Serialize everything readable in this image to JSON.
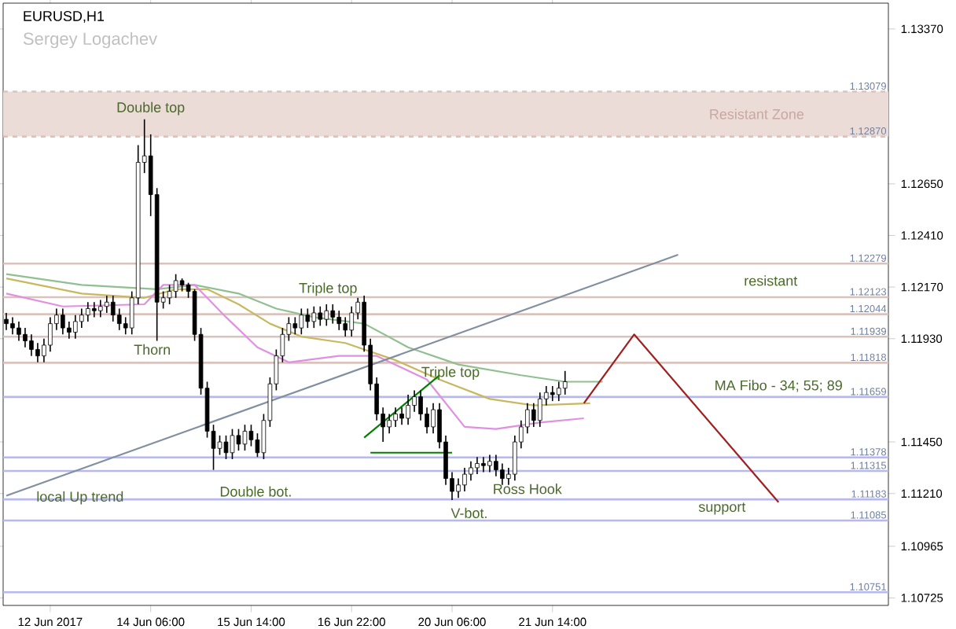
{
  "chart_data": {
    "type": "candlestick",
    "title": "EURUSD,H1",
    "subtitle": "Sergey Logachev",
    "categories": [
      null,
      null,
      null,
      null,
      null,
      null,
      null,
      "12 Jun 2017",
      null,
      null,
      null,
      null,
      null,
      null,
      null,
      null,
      null,
      null,
      null,
      null,
      null,
      null,
      null,
      "14 Jun 06:00",
      null,
      null,
      null,
      null,
      null,
      null,
      null,
      null,
      null,
      null,
      null,
      null,
      null,
      null,
      null,
      "15 Jun 14:00",
      null,
      null,
      null,
      null,
      null,
      null,
      null,
      null,
      null,
      null,
      null,
      null,
      null,
      null,
      null,
      "16 Jun 22:00",
      null,
      null,
      null,
      null,
      null,
      null,
      null,
      null,
      null,
      null,
      null,
      null,
      null,
      null,
      null,
      "20 Jun 06:00",
      null,
      null,
      null,
      null,
      null,
      null,
      null,
      null,
      null,
      null,
      null,
      null,
      null,
      null,
      null,
      "21 Jun 14:00",
      null,
      null,
      null,
      null,
      null,
      null,
      null,
      null,
      null,
      null,
      null,
      null,
      null,
      null,
      null,
      null,
      null,
      null,
      null,
      null,
      null,
      null,
      null,
      null,
      null,
      null,
      null,
      null,
      null,
      null,
      null,
      null,
      null,
      null,
      null,
      null,
      null,
      null,
      null,
      null,
      null,
      null,
      null,
      null,
      null,
      null,
      null,
      null,
      null,
      null,
      null,
      null,
      null
    ],
    "ohlc": [
      [
        1.1202,
        1.1205,
        1.1197,
        1.12
      ],
      [
        1.12,
        1.1203,
        1.1195,
        1.1198
      ],
      [
        1.1198,
        1.1201,
        1.1192,
        1.1195
      ],
      [
        1.1195,
        1.1198,
        1.1189,
        1.1192
      ],
      [
        1.1192,
        1.1195,
        1.1185,
        1.1188
      ],
      [
        1.1188,
        1.1191,
        1.1182,
        1.1185
      ],
      [
        1.1185,
        1.1193,
        1.1182,
        1.119
      ],
      [
        1.119,
        1.1203,
        1.1187,
        1.12
      ],
      [
        1.12,
        1.1207,
        1.1197,
        1.1204
      ],
      [
        1.1204,
        1.1207,
        1.1195,
        1.1198
      ],
      [
        1.1198,
        1.1201,
        1.1193,
        1.1196
      ],
      [
        1.1196,
        1.1204,
        1.1193,
        1.1201
      ],
      [
        1.1201,
        1.1207,
        1.1198,
        1.1204
      ],
      [
        1.1204,
        1.121,
        1.1201,
        1.1207
      ],
      [
        1.1207,
        1.121,
        1.1203,
        1.1206
      ],
      [
        1.1206,
        1.1211,
        1.1203,
        1.1208
      ],
      [
        1.1208,
        1.1213,
        1.1205,
        1.121
      ],
      [
        1.121,
        1.1213,
        1.1201,
        1.1204
      ],
      [
        1.1204,
        1.1207,
        1.1197,
        1.12
      ],
      [
        1.12,
        1.1203,
        1.1195,
        1.1198
      ],
      [
        1.1198,
        1.1215,
        1.1195,
        1.1212
      ],
      [
        1.1212,
        1.1283,
        1.1209,
        1.1275
      ],
      [
        1.1275,
        1.1295,
        1.127,
        1.1278
      ],
      [
        1.1278,
        1.1288,
        1.125,
        1.126
      ],
      [
        1.126,
        1.1263,
        1.1192,
        1.121
      ],
      [
        1.121,
        1.1215,
        1.1207,
        1.1212
      ],
      [
        1.1212,
        1.1218,
        1.1209,
        1.1215
      ],
      [
        1.1215,
        1.1223,
        1.1212,
        1.122
      ],
      [
        1.122,
        1.1221,
        1.1215,
        1.1218
      ],
      [
        1.1218,
        1.1219,
        1.1212,
        1.1215
      ],
      [
        1.1215,
        1.1216,
        1.1192,
        1.1195
      ],
      [
        1.1195,
        1.1198,
        1.1167,
        1.117
      ],
      [
        1.117,
        1.1173,
        1.1147,
        1.115
      ],
      [
        1.115,
        1.1153,
        1.1132,
        1.1142
      ],
      [
        1.1142,
        1.1148,
        1.1139,
        1.1145
      ],
      [
        1.1145,
        1.1148,
        1.1137,
        1.114
      ],
      [
        1.114,
        1.1151,
        1.1137,
        1.1148
      ],
      [
        1.1148,
        1.1151,
        1.1141,
        1.1144
      ],
      [
        1.1144,
        1.1153,
        1.1141,
        1.115
      ],
      [
        1.115,
        1.1153,
        1.1143,
        1.1146
      ],
      [
        1.1146,
        1.1149,
        1.1138,
        1.114
      ],
      [
        1.114,
        1.1158,
        1.1137,
        1.1155
      ],
      [
        1.1155,
        1.1175,
        1.1152,
        1.1172
      ],
      [
        1.1172,
        1.1188,
        1.1169,
        1.1185
      ],
      [
        1.1185,
        1.1198,
        1.1182,
        1.1195
      ],
      [
        1.1195,
        1.1203,
        1.1192,
        1.12
      ],
      [
        1.12,
        1.1203,
        1.1195,
        1.1198
      ],
      [
        1.1198,
        1.1207,
        1.1195,
        1.1204
      ],
      [
        1.1204,
        1.1207,
        1.1198,
        1.1201
      ],
      [
        1.1201,
        1.1208,
        1.1198,
        1.1205
      ],
      [
        1.1205,
        1.1208,
        1.1199,
        1.1202
      ],
      [
        1.1202,
        1.1209,
        1.1199,
        1.1206
      ],
      [
        1.1206,
        1.1209,
        1.12,
        1.1203
      ],
      [
        1.1203,
        1.1206,
        1.1197,
        1.12
      ],
      [
        1.12,
        1.1203,
        1.1194,
        1.1197
      ],
      [
        1.1197,
        1.1208,
        1.1194,
        1.1205
      ],
      [
        1.1205,
        1.1212,
        1.1202,
        1.121
      ],
      [
        1.121,
        1.1213,
        1.1187,
        1.119
      ],
      [
        1.119,
        1.1193,
        1.1169,
        1.1172
      ],
      [
        1.1172,
        1.1175,
        1.1155,
        1.1158
      ],
      [
        1.1158,
        1.1161,
        1.1145,
        1.1152
      ],
      [
        1.1152,
        1.1158,
        1.1149,
        1.1155
      ],
      [
        1.1155,
        1.1161,
        1.1152,
        1.1158
      ],
      [
        1.1158,
        1.1161,
        1.1153,
        1.1156
      ],
      [
        1.1156,
        1.1167,
        1.1153,
        1.1162
      ],
      [
        1.1162,
        1.1169,
        1.1159,
        1.1166
      ],
      [
        1.1166,
        1.1169,
        1.1155,
        1.1158
      ],
      [
        1.1158,
        1.1161,
        1.1149,
        1.1152
      ],
      [
        1.1152,
        1.1163,
        1.1149,
        1.116
      ],
      [
        1.116,
        1.1163,
        1.1142,
        1.1145
      ],
      [
        1.1145,
        1.1148,
        1.1125,
        1.1128
      ],
      [
        1.1128,
        1.1131,
        1.1118,
        1.1122
      ],
      [
        1.1122,
        1.1128,
        1.1119,
        1.1125
      ],
      [
        1.1125,
        1.1133,
        1.1122,
        1.113
      ],
      [
        1.113,
        1.1136,
        1.1127,
        1.1133
      ],
      [
        1.1133,
        1.1138,
        1.113,
        1.1135
      ],
      [
        1.1135,
        1.1138,
        1.1131,
        1.1134
      ],
      [
        1.1134,
        1.1139,
        1.1131,
        1.1136
      ],
      [
        1.1136,
        1.1139,
        1.1129,
        1.1132
      ],
      [
        1.1132,
        1.1135,
        1.1125,
        1.1128
      ],
      [
        1.1128,
        1.1133,
        1.1125,
        1.113
      ],
      [
        1.113,
        1.1148,
        1.1127,
        1.1145
      ],
      [
        1.1145,
        1.1155,
        1.1142,
        1.1152
      ],
      [
        1.1152,
        1.1163,
        1.1149,
        1.116
      ],
      [
        1.116,
        1.1163,
        1.1152,
        1.1155
      ],
      [
        1.1155,
        1.1168,
        1.1152,
        1.1165
      ],
      [
        1.1165,
        1.1171,
        1.1162,
        1.1168
      ],
      [
        1.1168,
        1.1171,
        1.1164,
        1.1167
      ],
      [
        1.1167,
        1.1173,
        1.1164,
        1.117
      ],
      [
        1.117,
        1.1178,
        1.1167,
        1.1173
      ],
      null,
      null,
      null,
      null,
      null,
      null,
      null,
      null,
      null,
      null,
      null,
      null,
      null,
      null,
      null,
      null,
      null,
      null,
      null,
      null,
      null,
      null,
      null,
      null,
      null,
      null,
      null,
      null,
      null,
      null,
      null,
      null,
      null,
      null,
      null,
      null,
      null,
      null,
      null,
      null,
      null,
      null,
      null,
      null,
      null,
      null,
      null,
      null,
      null,
      null,
      null
    ],
    "color": "#000000",
    "series": [
      {
        "type": "line",
        "color": "#90c090",
        "values": [
          1.1223,
          null,
          null,
          null,
          null,
          null,
          null,
          null,
          null,
          null,
          null,
          null,
          1.1218,
          null,
          null,
          null,
          null,
          null,
          null,
          null,
          null,
          null,
          null,
          null,
          1.1216,
          null,
          null,
          null,
          null,
          null,
          1.1218,
          null,
          null,
          null,
          null,
          null,
          null,
          1.1214,
          null,
          null,
          null,
          null,
          null,
          1.1207,
          null,
          null,
          null,
          null,
          null,
          1.1203,
          null,
          null,
          null,
          null,
          null,
          null,
          null,
          1.12,
          null,
          null,
          null,
          null,
          null,
          null,
          1.1189,
          null,
          null,
          null,
          null,
          null,
          null,
          null,
          1.1181,
          null,
          null,
          null,
          null,
          null,
          null,
          null,
          null,
          null,
          1.1176,
          null,
          null,
          null,
          null,
          null,
          null,
          1.1173,
          null,
          null,
          null,
          null,
          null,
          1.1173,
          null,
          null,
          null,
          null,
          null,
          null,
          null,
          null,
          null,
          null,
          null,
          null,
          null,
          null,
          null,
          null,
          null,
          null,
          null,
          null,
          null,
          null,
          null,
          null,
          null,
          null,
          null,
          null,
          null,
          null,
          null,
          null,
          null,
          null,
          null,
          null,
          null,
          null,
          null,
          null,
          null,
          null,
          null,
          null,
          null
        ]
      },
      {
        "type": "line",
        "color": "#c8b860",
        "values": [
          1.1221,
          null,
          null,
          null,
          null,
          null,
          null,
          null,
          null,
          null,
          null,
          null,
          1.1214,
          null,
          null,
          null,
          null,
          null,
          null,
          null,
          null,
          null,
          1.1212,
          null,
          null,
          null,
          null,
          1.1216,
          null,
          null,
          null,
          null,
          1.1216,
          null,
          null,
          null,
          null,
          1.1209,
          null,
          null,
          null,
          null,
          1.12,
          null,
          null,
          null,
          null,
          1.1194,
          null,
          null,
          null,
          null,
          null,
          null,
          1.1191,
          null,
          null,
          null,
          null,
          null,
          null,
          null,
          1.1183,
          null,
          null,
          null,
          null,
          null,
          null,
          1.1174,
          null,
          null,
          null,
          null,
          null,
          null,
          null,
          1.1165,
          null,
          null,
          null,
          null,
          null,
          null,
          1.1162,
          null,
          null,
          null,
          null,
          null,
          null,
          null,
          null,
          1.1163,
          null,
          null,
          null,
          null,
          null,
          null,
          null,
          null,
          null,
          null,
          null,
          null,
          null,
          null,
          null,
          null,
          null,
          null,
          null,
          null,
          null,
          null,
          null,
          null,
          null,
          null,
          null,
          null,
          null,
          null,
          null,
          null,
          null,
          null,
          null,
          null,
          null,
          null,
          null,
          null,
          null,
          null,
          null,
          null,
          null,
          null,
          null
        ]
      },
      {
        "type": "line",
        "color": "#e090e0",
        "values": [
          1.1214,
          null,
          null,
          null,
          null,
          null,
          null,
          null,
          null,
          1.1208,
          null,
          null,
          null,
          null,
          null,
          null,
          null,
          null,
          null,
          null,
          null,
          null,
          1.1209,
          null,
          null,
          1.1218,
          null,
          null,
          null,
          null,
          1.1218,
          null,
          null,
          null,
          null,
          1.1203,
          null,
          null,
          null,
          null,
          1.1189,
          null,
          null,
          null,
          null,
          1.1182,
          null,
          null,
          null,
          null,
          null,
          null,
          null,
          1.1185,
          null,
          null,
          null,
          null,
          null,
          1.1185,
          null,
          null,
          null,
          null,
          null,
          null,
          null,
          1.1174,
          null,
          null,
          null,
          null,
          null,
          1.1152,
          null,
          null,
          null,
          null,
          1.1151,
          null,
          null,
          null,
          null,
          null,
          null,
          1.1154,
          null,
          null,
          null,
          null,
          null,
          null,
          1.1156,
          null,
          null,
          null,
          null,
          null,
          null,
          null,
          null,
          null,
          null,
          null,
          null,
          null,
          null,
          null,
          null,
          null,
          null,
          null,
          null,
          null,
          null,
          null,
          null,
          null,
          null,
          null,
          null,
          null,
          null,
          null,
          null,
          null,
          null,
          null,
          null,
          null,
          null,
          null,
          null,
          null,
          null,
          null,
          null,
          null,
          null,
          null,
          null
        ]
      },
      {
        "type": "line",
        "color": "#8090a0",
        "values": [
          1.112,
          null,
          null,
          null,
          null,
          null,
          null,
          null,
          null,
          null,
          null,
          null,
          null,
          null,
          null,
          null,
          null,
          null,
          null,
          null,
          null,
          null,
          null,
          null,
          null,
          null,
          null,
          null,
          null,
          null,
          null,
          null,
          null,
          null,
          null,
          null,
          null,
          null,
          null,
          null,
          null,
          null,
          null,
          null,
          null,
          null,
          null,
          null,
          null,
          null,
          null,
          null,
          null,
          null,
          null,
          null,
          null,
          null,
          null,
          null,
          null,
          null,
          null,
          null,
          null,
          null,
          null,
          null,
          null,
          null,
          null,
          null,
          null,
          null,
          null,
          null,
          null,
          null,
          null,
          null,
          null,
          null,
          null,
          null,
          null,
          null,
          null,
          null,
          null,
          null,
          null,
          null,
          null,
          null,
          null,
          null,
          null,
          null,
          null,
          null,
          null,
          null,
          null,
          null,
          null,
          null,
          null,
          1.1232,
          null,
          null,
          null,
          null,
          null,
          null,
          null,
          null,
          null,
          null,
          null,
          null,
          null,
          null,
          null,
          null,
          null,
          null,
          null,
          null,
          null,
          null,
          null,
          null,
          null,
          null,
          null,
          null,
          null,
          null,
          null,
          null,
          null
        ]
      },
      {
        "type": "line",
        "color": "#008000",
        "values": [
          null,
          null,
          null,
          null,
          null,
          null,
          null,
          null,
          null,
          null,
          null,
          null,
          null,
          null,
          null,
          null,
          null,
          null,
          null,
          null,
          null,
          null,
          null,
          null,
          null,
          null,
          null,
          null,
          null,
          null,
          null,
          null,
          null,
          null,
          null,
          null,
          null,
          null,
          null,
          null,
          null,
          null,
          null,
          null,
          null,
          null,
          null,
          null,
          null,
          null,
          null,
          null,
          null,
          null,
          null,
          null,
          null,
          1.1147,
          null,
          null,
          null,
          null,
          null,
          null,
          null,
          null,
          null,
          null,
          null,
          1.1176,
          null,
          null,
          null,
          null,
          null,
          null,
          null,
          null,
          null,
          null,
          null,
          null,
          null,
          null,
          null,
          null,
          null,
          null,
          null,
          null,
          null,
          null,
          null,
          null,
          null,
          null,
          null,
          null,
          null,
          null,
          null,
          null,
          null,
          null,
          null,
          null,
          null,
          null,
          null,
          null,
          null,
          null,
          null,
          null,
          null,
          null,
          null,
          null,
          null,
          null,
          null,
          null,
          null,
          null,
          null,
          null,
          null,
          null,
          null,
          null,
          null,
          null,
          null,
          null,
          null,
          null,
          null,
          null,
          null,
          null,
          null
        ]
      },
      {
        "type": "line",
        "color": "#008000",
        "values": [
          null,
          null,
          null,
          null,
          null,
          null,
          null,
          null,
          null,
          null,
          null,
          null,
          null,
          null,
          null,
          null,
          null,
          null,
          null,
          null,
          null,
          null,
          null,
          null,
          null,
          null,
          null,
          null,
          null,
          null,
          null,
          null,
          null,
          null,
          null,
          null,
          null,
          null,
          null,
          null,
          null,
          null,
          null,
          null,
          null,
          null,
          null,
          null,
          null,
          null,
          null,
          null,
          null,
          null,
          null,
          null,
          null,
          null,
          1.114,
          null,
          null,
          null,
          null,
          null,
          null,
          null,
          null,
          null,
          null,
          null,
          null,
          1.114,
          null,
          null,
          null,
          null,
          null,
          null,
          null,
          null,
          null,
          null,
          null,
          null,
          null,
          null,
          null,
          null,
          null,
          null,
          null,
          null,
          null,
          null,
          null,
          null,
          null,
          null,
          null,
          null,
          null,
          null,
          null,
          null,
          null,
          null,
          null,
          null,
          null,
          null,
          null,
          null,
          null,
          null,
          null,
          null,
          null,
          null,
          null,
          null,
          null,
          null,
          null,
          null,
          null,
          null,
          null,
          null,
          null,
          null,
          null,
          null,
          null,
          null,
          null,
          null,
          null,
          null,
          null,
          null,
          null
        ]
      },
      {
        "type": "line",
        "color": "#a02020",
        "values": [
          null,
          null,
          null,
          null,
          null,
          null,
          null,
          null,
          null,
          null,
          null,
          null,
          null,
          null,
          null,
          null,
          null,
          null,
          null,
          null,
          null,
          null,
          null,
          null,
          null,
          null,
          null,
          null,
          null,
          null,
          null,
          null,
          null,
          null,
          null,
          null,
          null,
          null,
          null,
          null,
          null,
          null,
          null,
          null,
          null,
          null,
          null,
          null,
          null,
          null,
          null,
          null,
          null,
          null,
          null,
          null,
          null,
          null,
          null,
          null,
          null,
          null,
          null,
          null,
          null,
          null,
          null,
          null,
          null,
          null,
          null,
          null,
          null,
          null,
          null,
          null,
          null,
          null,
          null,
          null,
          null,
          null,
          null,
          null,
          null,
          null,
          null,
          null,
          null,
          null,
          null,
          null,
          1.1163,
          null,
          null,
          null,
          null,
          null,
          null,
          null,
          1.1195,
          null,
          null,
          null,
          null,
          null,
          null,
          null,
          null,
          null,
          null,
          null,
          null,
          null,
          null,
          null,
          null,
          null,
          null,
          null,
          null,
          null,
          null,
          1.1117,
          null,
          null,
          null,
          null,
          null,
          null,
          null,
          null,
          null,
          null,
          null,
          null,
          null,
          null,
          null,
          null,
          null
        ]
      }
    ],
    "ylim": [
      1.1069,
      1.1349
    ],
    "yticks": [
      {
        "value": 1.1337,
        "label": "1.13370"
      },
      {
        "value": 1.1265,
        "label": "1.12650"
      },
      {
        "value": 1.1241,
        "label": "1.12410"
      },
      {
        "value": 1.1217,
        "label": "1.12170"
      },
      {
        "value": 1.1193,
        "label": "1.11930"
      },
      {
        "value": 1.1145,
        "label": "1.11450"
      },
      {
        "value": 1.1121,
        "label": "1.11210"
      },
      {
        "value": 1.10965,
        "label": "1.10965"
      },
      {
        "value": 1.10725,
        "label": "1.10725"
      }
    ],
    "bands": [
      {
        "axis": "y",
        "from": 1.1287,
        "to": 1.13079,
        "label": "Resistant Zone",
        "color": "#ecdcd8"
      }
    ],
    "ref_lines": [
      {
        "axis": "y",
        "value": 1.13079,
        "label": "1.13079",
        "color": "#dbc3bd",
        "line_style": "dashed"
      },
      {
        "axis": "y",
        "value": 1.1287,
        "label": "1.12870",
        "color": "#dbc3bd",
        "line_style": "dashed"
      },
      {
        "axis": "y",
        "value": 1.12279,
        "label": "1.12279",
        "color": "#dbc3bd"
      },
      {
        "axis": "y",
        "value": 1.12123,
        "label": "1.12123",
        "color": "#dbc3bd"
      },
      {
        "axis": "y",
        "value": 1.12044,
        "label": "1.12044",
        "color": "#dbc3bd"
      },
      {
        "axis": "y",
        "value": 1.11939,
        "label": "1.11939",
        "color": "#dbc3bd"
      },
      {
        "axis": "y",
        "value": 1.11818,
        "label": "1.11818",
        "color": "#dbc3bd"
      },
      {
        "axis": "y",
        "value": 1.11659,
        "label": "1.11659",
        "color": "#b8b8f0"
      },
      {
        "axis": "y",
        "value": 1.11378,
        "label": "1.11378",
        "color": "#b8b8f0"
      },
      {
        "axis": "y",
        "value": 1.11315,
        "label": "1.11315",
        "color": "#b8b8f0"
      },
      {
        "axis": "y",
        "value": 1.11183,
        "label": "1.11183",
        "color": "#b8b8f0"
      },
      {
        "axis": "y",
        "value": 1.11085,
        "label": "1.11085",
        "color": "#b8b8f0"
      },
      {
        "axis": "y",
        "value": 1.10751,
        "label": "1.10751",
        "color": "#b8b8f0"
      }
    ],
    "annotations": [
      "Double top",
      "Thorn",
      "Triple top",
      "Triple top",
      "Double bot.",
      "V-bot.",
      "Ross Hook",
      "local Up trend",
      "MA Fibo - 34; 55; 89",
      "resistant",
      "support"
    ]
  }
}
